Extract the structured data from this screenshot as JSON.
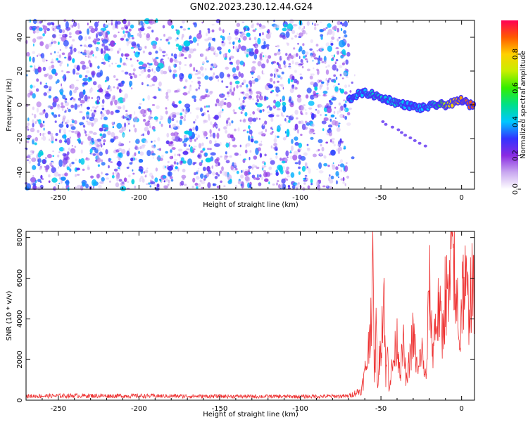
{
  "title": "GN02.2023.230.12.44.G24",
  "chart_data": [
    {
      "type": "heatmap",
      "xlabel": "Height of straight line (km)",
      "ylabel": "Frequency (Hz)",
      "xlim": [
        -270,
        8
      ],
      "ylim": [
        -50,
        50
      ],
      "xticks": [
        -250,
        -200,
        -150,
        -100,
        -50,
        0
      ],
      "yticks": [
        -40,
        -20,
        0,
        20,
        40
      ],
      "colorbar": {
        "label": "Normalized spectral amplitude",
        "range": [
          0,
          1
        ],
        "ticks": [
          0.0,
          0.2,
          0.4,
          0.6,
          0.8
        ],
        "colors": [
          "#ffffff",
          "#c9a8f0",
          "#8a2be2",
          "#3333ff",
          "#00c8ff",
          "#00e08a",
          "#33ee00",
          "#c8ee00",
          "#ffd000",
          "#ff5a00",
          "#ff0055"
        ]
      },
      "noise_region_x": [
        -270,
        -70
      ],
      "signal_track": {
        "x": [
          -70,
          -65,
          -60,
          -55,
          -50,
          -45,
          -40,
          -35,
          -30,
          -25,
          -20,
          -15,
          -10,
          -5,
          0,
          5,
          8
        ],
        "freq": [
          3,
          6,
          7,
          6,
          4,
          3,
          1,
          0,
          -1,
          -2,
          -1,
          0,
          0,
          1,
          3,
          0,
          0
        ],
        "amplitude": [
          0.35,
          0.4,
          0.4,
          0.45,
          0.45,
          0.4,
          0.45,
          0.4,
          0.35,
          0.4,
          0.4,
          0.5,
          0.7,
          0.8,
          0.85,
          0.9,
          0.9
        ]
      }
    },
    {
      "type": "line",
      "xlabel": "Height of straight line (km)",
      "ylabel": "SNR (10 * v/v)",
      "xlim": [
        -270,
        8
      ],
      "ylim": [
        0,
        8300
      ],
      "xticks": [
        -250,
        -200,
        -150,
        -100,
        -50,
        0
      ],
      "yticks": [
        0,
        2000,
        4000,
        6000,
        8000
      ],
      "series": [
        {
          "color": "#ee3333",
          "x": [
            -270,
            -240,
            -200,
            -150,
            -100,
            -70,
            -62,
            -58,
            -55,
            -54,
            -53,
            -52,
            -50,
            -48,
            -47,
            -46,
            -45,
            -42,
            -40,
            -38,
            -36,
            -34,
            -32,
            -30,
            -27,
            -25,
            -22,
            -20,
            -18,
            -16,
            -14,
            -12,
            -10,
            -8,
            -5,
            -4,
            -3,
            -2,
            -1,
            0,
            2,
            4,
            6,
            8
          ],
          "y": [
            200,
            220,
            210,
            190,
            180,
            200,
            500,
            2200,
            5900,
            1200,
            3500,
            800,
            3000,
            5500,
            900,
            2500,
            700,
            2000,
            3000,
            1500,
            2600,
            800,
            2200,
            3200,
            1200,
            2600,
            900,
            5700,
            2500,
            3800,
            4500,
            3000,
            5500,
            4600,
            8300,
            3800,
            5200,
            4400,
            2500,
            5200,
            5800,
            4600,
            5500,
            5000
          ]
        }
      ]
    }
  ]
}
